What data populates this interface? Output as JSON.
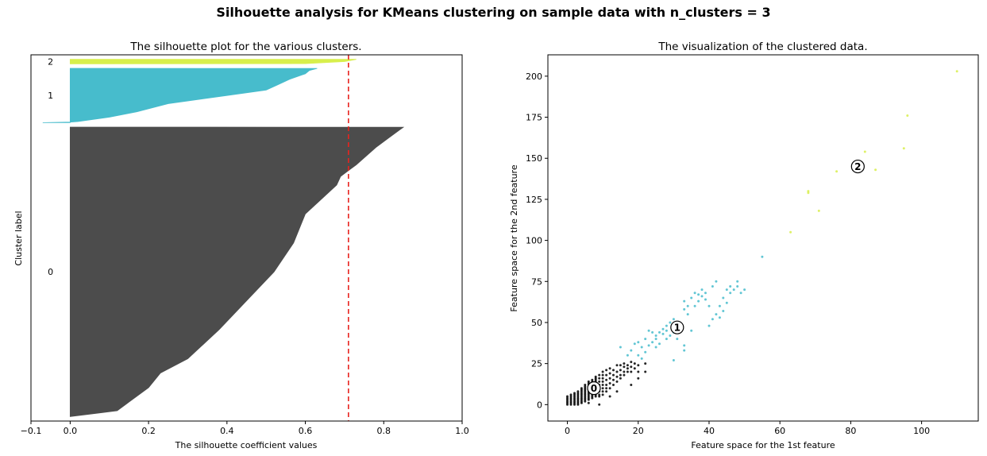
{
  "suptitle": "Silhouette analysis for KMeans clustering on sample data with n_clusters = 3",
  "colors": {
    "cluster_0": "#4c4c4c",
    "cluster_1": "#47bccc",
    "cluster_2": "#d8ef4c",
    "average_line": "#e8231e"
  },
  "chart_data": [
    {
      "type": "area",
      "title": "The silhouette plot for the various clusters.",
      "xlabel": "The silhouette coefficient values",
      "ylabel": "Cluster label",
      "xlim": [
        -0.1,
        1.0
      ],
      "xticks": [
        "−0.1",
        "0.0",
        "0.2",
        "0.4",
        "0.6",
        "0.8",
        "1.0"
      ],
      "xtick_values": [
        -0.1,
        0.0,
        0.2,
        0.4,
        0.6,
        0.8,
        1.0
      ],
      "cluster_labels": [
        "0",
        "1",
        "2"
      ],
      "average_silhouette": 0.71,
      "average_line_style": "dashed",
      "clusters": [
        {
          "label": "0",
          "size": 640,
          "y_start": 10,
          "color": "#4c4c4c",
          "sorted_values": [
            [
              0.0,
              0.0
            ],
            [
              0.02,
              0.12
            ],
            [
              0.05,
              0.15
            ],
            [
              0.1,
              0.2
            ],
            [
              0.15,
              0.23
            ],
            [
              0.2,
              0.3
            ],
            [
              0.3,
              0.38
            ],
            [
              0.4,
              0.45
            ],
            [
              0.5,
              0.52
            ],
            [
              0.6,
              0.57
            ],
            [
              0.7,
              0.6
            ],
            [
              0.75,
              0.64
            ],
            [
              0.8,
              0.68
            ],
            [
              0.83,
              0.69
            ],
            [
              0.85,
              0.71
            ],
            [
              0.87,
              0.73
            ],
            [
              0.9,
              0.755
            ],
            [
              0.93,
              0.78
            ],
            [
              0.96,
              0.81
            ],
            [
              0.99,
              0.84
            ],
            [
              1.0,
              0.85
            ]
          ]
        },
        {
          "label": "1",
          "size": 120,
          "y_start": 660,
          "color": "#47bccc",
          "sorted_values": [
            [
              0.0,
              -0.07
            ],
            [
              0.01,
              0.0
            ],
            [
              0.02,
              0.02
            ],
            [
              0.1,
              0.1
            ],
            [
              0.2,
              0.17
            ],
            [
              0.35,
              0.25
            ],
            [
              0.5,
              0.4
            ],
            [
              0.6,
              0.5
            ],
            [
              0.7,
              0.53
            ],
            [
              0.8,
              0.56
            ],
            [
              0.9,
              0.6
            ],
            [
              0.96,
              0.61
            ],
            [
              1.0,
              0.63
            ]
          ]
        },
        {
          "label": "2",
          "size": 10,
          "y_start": 790,
          "color": "#d8ef4c",
          "sorted_values": [
            [
              0.0,
              0.0
            ],
            [
              0.05,
              0.6
            ],
            [
              0.5,
              0.7
            ],
            [
              1.0,
              0.73
            ]
          ]
        }
      ],
      "ylim": [
        0,
        810
      ],
      "grid": false
    },
    {
      "type": "scatter",
      "title": "The visualization of the clustered data.",
      "xlabel": "Feature space for the 1st feature",
      "ylabel": "Feature space for the 2nd feature",
      "xlim": [
        -5.5,
        116
      ],
      "ylim": [
        -10,
        213
      ],
      "xticks": [
        "0",
        "20",
        "40",
        "60",
        "80",
        "100"
      ],
      "xtick_values": [
        0,
        20,
        40,
        60,
        80,
        100
      ],
      "yticks": [
        "0",
        "25",
        "50",
        "75",
        "100",
        "125",
        "150",
        "175",
        "200"
      ],
      "ytick_values": [
        0,
        25,
        50,
        75,
        100,
        125,
        150,
        175,
        200
      ],
      "grid": false,
      "centers": [
        {
          "label": "0",
          "x": 7.5,
          "y": 10
        },
        {
          "label": "1",
          "x": 31,
          "y": 47
        },
        {
          "label": "2",
          "x": 82,
          "y": 145
        }
      ],
      "series": [
        {
          "color": "#000000",
          "points": [
            [
              0,
              0
            ],
            [
              0,
              1
            ],
            [
              0,
              2
            ],
            [
              0,
              3
            ],
            [
              0,
              4
            ],
            [
              0,
              5
            ],
            [
              1,
              0
            ],
            [
              1,
              1
            ],
            [
              1,
              2
            ],
            [
              1,
              3
            ],
            [
              1,
              4
            ],
            [
              1,
              5
            ],
            [
              1,
              6
            ],
            [
              2,
              0
            ],
            [
              2,
              1
            ],
            [
              2,
              2
            ],
            [
              2,
              3
            ],
            [
              2,
              4
            ],
            [
              2,
              5
            ],
            [
              2,
              6
            ],
            [
              2,
              7
            ],
            [
              3,
              0
            ],
            [
              3,
              1
            ],
            [
              3,
              2
            ],
            [
              3,
              3
            ],
            [
              3,
              4
            ],
            [
              3,
              5
            ],
            [
              3,
              6
            ],
            [
              3,
              7
            ],
            [
              3,
              8
            ],
            [
              4,
              1
            ],
            [
              4,
              2
            ],
            [
              4,
              3
            ],
            [
              4,
              4
            ],
            [
              4,
              5
            ],
            [
              4,
              6
            ],
            [
              4,
              7
            ],
            [
              4,
              8
            ],
            [
              4,
              9
            ],
            [
              4,
              10
            ],
            [
              5,
              2
            ],
            [
              5,
              3
            ],
            [
              5,
              4
            ],
            [
              5,
              5
            ],
            [
              5,
              6
            ],
            [
              5,
              7
            ],
            [
              5,
              8
            ],
            [
              5,
              9
            ],
            [
              5,
              10
            ],
            [
              5,
              11
            ],
            [
              5,
              12
            ],
            [
              6,
              3
            ],
            [
              6,
              4
            ],
            [
              6,
              5
            ],
            [
              6,
              6
            ],
            [
              6,
              7
            ],
            [
              6,
              8
            ],
            [
              6,
              9
            ],
            [
              6,
              10
            ],
            [
              6,
              11
            ],
            [
              6,
              12
            ],
            [
              6,
              13
            ],
            [
              6,
              14
            ],
            [
              7,
              4
            ],
            [
              7,
              5
            ],
            [
              7,
              6
            ],
            [
              7,
              7
            ],
            [
              7,
              8
            ],
            [
              7,
              9
            ],
            [
              7,
              10
            ],
            [
              7,
              11
            ],
            [
              7,
              12
            ],
            [
              7,
              13
            ],
            [
              7,
              14
            ],
            [
              7,
              15
            ],
            [
              8,
              5
            ],
            [
              8,
              6
            ],
            [
              8,
              7
            ],
            [
              8,
              8
            ],
            [
              8,
              9
            ],
            [
              8,
              10
            ],
            [
              8,
              11
            ],
            [
              8,
              12
            ],
            [
              8,
              13
            ],
            [
              8,
              14
            ],
            [
              8,
              15
            ],
            [
              8,
              16
            ],
            [
              8,
              17
            ],
            [
              9,
              5
            ],
            [
              9,
              6
            ],
            [
              9,
              8
            ],
            [
              9,
              10
            ],
            [
              9,
              12
            ],
            [
              9,
              14
            ],
            [
              9,
              16
            ],
            [
              9,
              18
            ],
            [
              10,
              6
            ],
            [
              10,
              8
            ],
            [
              10,
              10
            ],
            [
              10,
              12
            ],
            [
              10,
              14
            ],
            [
              10,
              16
            ],
            [
              10,
              18
            ],
            [
              10,
              20
            ],
            [
              11,
              8
            ],
            [
              11,
              10
            ],
            [
              11,
              12
            ],
            [
              11,
              15
            ],
            [
              11,
              18
            ],
            [
              11,
              21
            ],
            [
              12,
              10
            ],
            [
              12,
              13
            ],
            [
              12,
              16
            ],
            [
              12,
              19
            ],
            [
              12,
              22
            ],
            [
              13,
              12
            ],
            [
              13,
              15
            ],
            [
              13,
              18
            ],
            [
              13,
              21
            ],
            [
              14,
              14
            ],
            [
              14,
              17
            ],
            [
              14,
              20
            ],
            [
              14,
              24
            ],
            [
              15,
              16
            ],
            [
              15,
              18
            ],
            [
              15,
              21
            ],
            [
              15,
              24
            ],
            [
              16,
              18
            ],
            [
              16,
              20
            ],
            [
              16,
              23
            ],
            [
              16,
              25
            ],
            [
              17,
              20
            ],
            [
              17,
              22
            ],
            [
              17,
              24
            ],
            [
              18,
              20
            ],
            [
              18,
              23
            ],
            [
              18,
              26
            ],
            [
              19,
              22
            ],
            [
              19,
              25
            ],
            [
              20,
              20
            ],
            [
              20,
              24
            ],
            [
              22,
              20
            ],
            [
              22,
              25
            ],
            [
              9,
              0
            ],
            [
              6,
              1
            ],
            [
              12,
              5
            ],
            [
              14,
              8
            ],
            [
              18,
              12
            ],
            [
              20,
              16
            ]
          ]
        },
        {
          "color": "#47bccc",
          "points": [
            [
              15,
              35
            ],
            [
              17,
              30
            ],
            [
              18,
              33
            ],
            [
              19,
              37
            ],
            [
              20,
              30
            ],
            [
              20,
              38
            ],
            [
              21,
              35
            ],
            [
              22,
              32
            ],
            [
              22,
              40
            ],
            [
              23,
              36
            ],
            [
              23,
              45
            ],
            [
              24,
              38
            ],
            [
              24,
              44
            ],
            [
              25,
              40
            ],
            [
              25,
              42
            ],
            [
              26,
              44
            ],
            [
              26,
              37
            ],
            [
              27,
              43
            ],
            [
              27,
              46
            ],
            [
              28,
              40
            ],
            [
              28,
              45
            ],
            [
              28,
              48
            ],
            [
              29,
              42
            ],
            [
              29,
              50
            ],
            [
              30,
              44
            ],
            [
              30,
              47
            ],
            [
              30,
              52
            ],
            [
              31,
              40
            ],
            [
              31,
              50
            ],
            [
              32,
              45
            ],
            [
              32,
              48
            ],
            [
              33,
              36
            ],
            [
              33,
              58
            ],
            [
              33,
              63
            ],
            [
              34,
              55
            ],
            [
              34,
              60
            ],
            [
              35,
              45
            ],
            [
              35,
              65
            ],
            [
              36,
              60
            ],
            [
              36,
              68
            ],
            [
              37,
              63
            ],
            [
              37,
              67
            ],
            [
              38,
              66
            ],
            [
              38,
              70
            ],
            [
              39,
              64
            ],
            [
              39,
              68
            ],
            [
              40,
              48
            ],
            [
              40,
              60
            ],
            [
              41,
              52
            ],
            [
              41,
              72
            ],
            [
              42,
              55
            ],
            [
              42,
              75
            ],
            [
              43,
              53
            ],
            [
              43,
              60
            ],
            [
              44,
              57
            ],
            [
              44,
              65
            ],
            [
              45,
              62
            ],
            [
              45,
              70
            ],
            [
              46,
              68
            ],
            [
              46,
              72
            ],
            [
              47,
              70
            ],
            [
              48,
              72
            ],
            [
              48,
              75
            ],
            [
              49,
              68
            ],
            [
              50,
              70
            ],
            [
              55,
              90
            ],
            [
              30,
              27
            ],
            [
              25,
              35
            ],
            [
              21,
              28
            ],
            [
              33,
              33
            ]
          ]
        },
        {
          "color": "#d8ef4c",
          "points": [
            [
              63,
              105
            ],
            [
              68,
              129
            ],
            [
              68,
              130
            ],
            [
              71,
              118
            ],
            [
              76,
              142
            ],
            [
              84,
              154
            ],
            [
              87,
              143
            ],
            [
              95,
              156
            ],
            [
              96,
              176
            ],
            [
              110,
              203
            ]
          ]
        }
      ]
    }
  ]
}
